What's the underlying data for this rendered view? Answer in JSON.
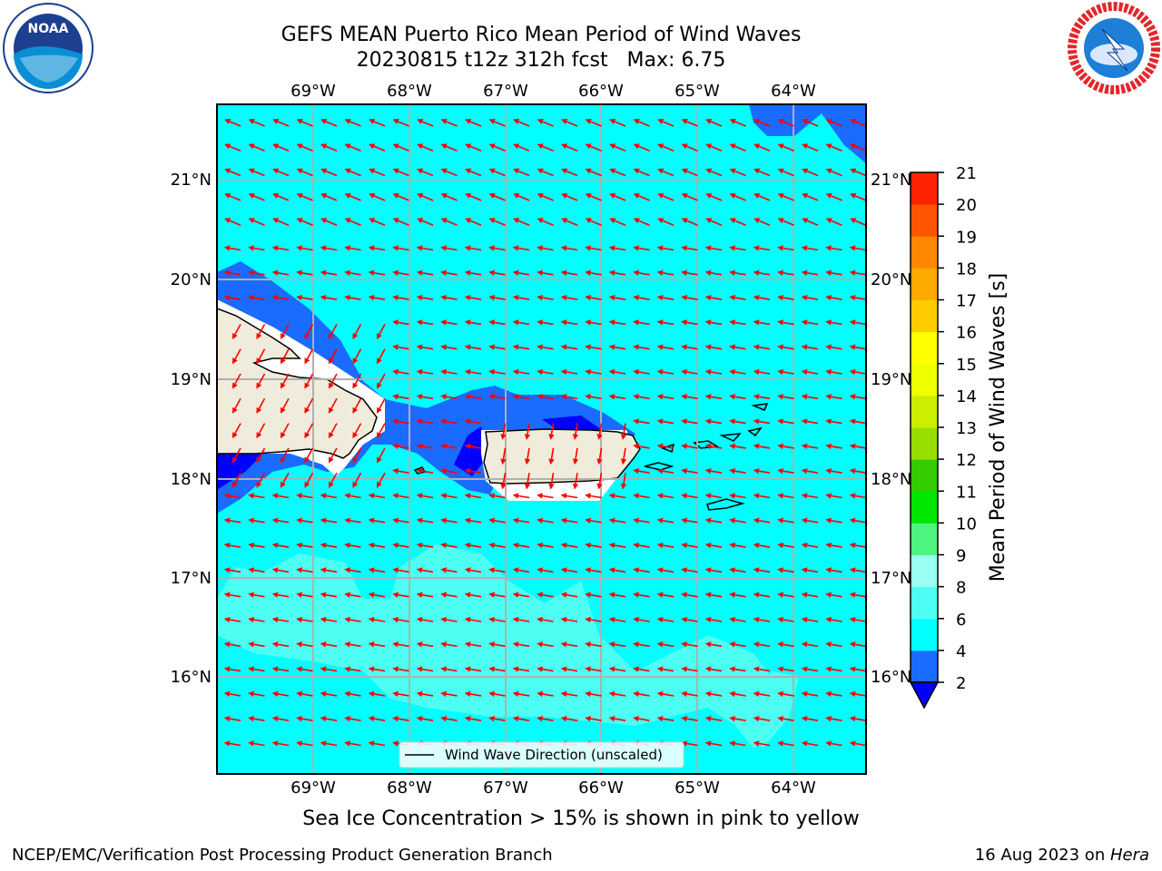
{
  "title": {
    "line1": "GEFS MEAN Puerto Rico Mean Period of Wind Waves",
    "line2": "20230815 t12z 312h fcst   Max: 6.75"
  },
  "logos": {
    "left": "noaa-logo",
    "left_text": "NOAA",
    "right": "nws-logo"
  },
  "axes": {
    "lon_labels": [
      "69°W",
      "68°W",
      "67°W",
      "66°W",
      "65°W",
      "64°W"
    ],
    "lat_labels": [
      "21°N",
      "20°N",
      "19°N",
      "18°N",
      "17°N",
      "16°N"
    ]
  },
  "legend": {
    "label": "Wind Wave Direction (unscaled)"
  },
  "colorbar": {
    "label": "Mean Period of Wind Waves [s]",
    "ticks": [
      "2",
      "4",
      "6",
      "8",
      "9",
      "10",
      "11",
      "12",
      "13",
      "14",
      "15",
      "16",
      "17",
      "18",
      "19",
      "20",
      "21"
    ],
    "colors": [
      "#1a6bff",
      "#00ffff",
      "#4dfff2",
      "#99fff0",
      "#4df580",
      "#00e600",
      "#33cc00",
      "#99dd00",
      "#ccee00",
      "#eeff00",
      "#ffff00",
      "#ffcc00",
      "#ffaa00",
      "#ff8800",
      "#ff5500",
      "#ff2200",
      "#ff0000"
    ],
    "under_color": "#0000ff"
  },
  "field_colors": {
    "deep_blue": "#0000ff",
    "mid_blue": "#1a6bff",
    "cyan": "#00ffff",
    "light_cyan": "#4dfff2",
    "land": "#efecdc",
    "arrows": "#ff0000"
  },
  "notes": {
    "ice": "Sea Ice Concentration > 15% is shown in pink to yellow"
  },
  "footer": {
    "left": "NCEP/EMC/Verification Post Processing Product Generation Branch",
    "date": "16 Aug 2023 on ",
    "host": "Hera"
  }
}
